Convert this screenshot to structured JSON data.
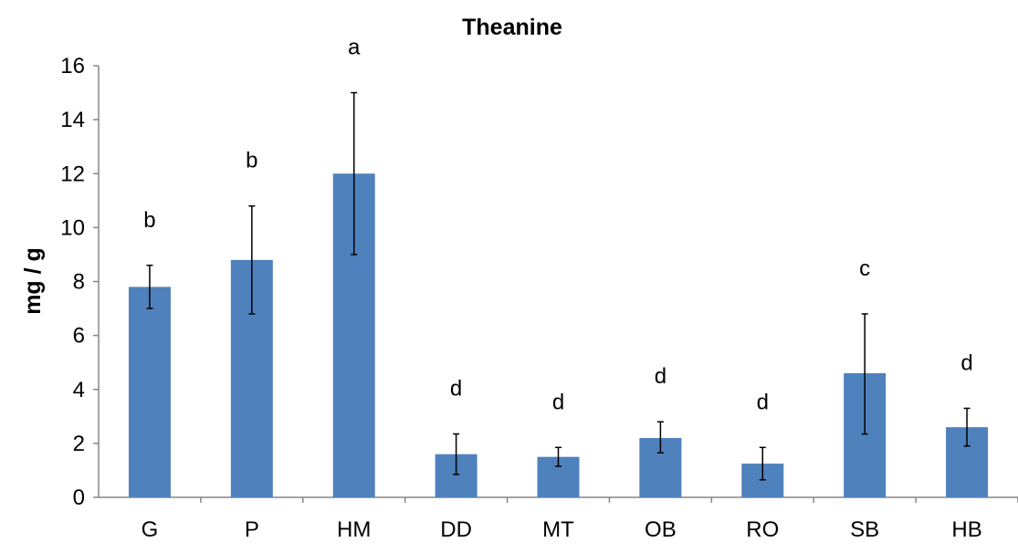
{
  "chart_data": {
    "type": "bar",
    "title": "Theanine",
    "xlabel": "",
    "ylabel": "mg / g",
    "categories": [
      "G",
      "P",
      "HM",
      "DD",
      "MT",
      "OB",
      "RO",
      "SB",
      "HB"
    ],
    "values": [
      7.8,
      8.8,
      12.0,
      1.6,
      1.5,
      2.2,
      1.25,
      4.6,
      2.6
    ],
    "error_low": [
      7.0,
      6.8,
      9.0,
      0.85,
      1.15,
      1.65,
      0.65,
      2.35,
      1.9
    ],
    "error_high": [
      8.6,
      10.8,
      15.0,
      2.35,
      1.85,
      2.8,
      1.85,
      6.8,
      3.3
    ],
    "significance_letters": [
      "b",
      "b",
      "a",
      "d",
      "d",
      "d",
      "d",
      "c",
      "d"
    ],
    "ylim": [
      0,
      16
    ],
    "yticks": [
      0,
      2,
      4,
      6,
      8,
      10,
      12,
      14,
      16
    ],
    "grid": false,
    "legend": "none",
    "bar_color": "#4f81bd",
    "axis_color": "#868686"
  }
}
